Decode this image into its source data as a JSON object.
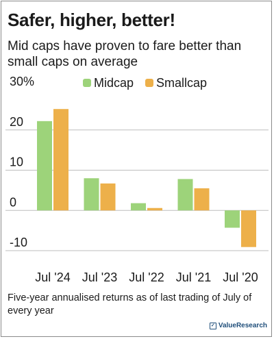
{
  "chart_data": {
    "type": "bar",
    "title": "Safer, higher, better!",
    "subtitle": "Mid caps have proven to fare better than small caps on average",
    "categories": [
      "Jul '24",
      "Jul '23",
      "Jul '22",
      "Jul '21",
      "Jul '20"
    ],
    "series": [
      {
        "name": "Midcap",
        "color": "#9dd37a",
        "values": [
          22.2,
          8.0,
          1.8,
          7.8,
          -4.3
        ]
      },
      {
        "name": "Smallcap",
        "color": "#edb04a",
        "values": [
          25.2,
          6.7,
          0.6,
          5.5,
          -9.1
        ]
      }
    ],
    "y_ticks": [
      {
        "value": 30,
        "label": "30%"
      },
      {
        "value": 20,
        "label": "20"
      },
      {
        "value": 10,
        "label": "10"
      },
      {
        "value": 0,
        "label": "0"
      },
      {
        "value": -10,
        "label": "-10"
      }
    ],
    "ylim": [
      -10,
      30
    ],
    "xlabel": "",
    "ylabel": "",
    "grid": true,
    "legend_position": "top"
  },
  "footnote": "Five-year annualised returns as of last trading of July of every year",
  "brand": "ValueResearch"
}
